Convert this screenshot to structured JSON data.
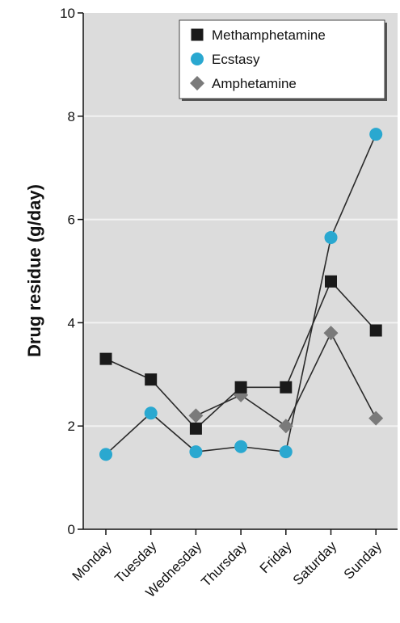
{
  "chart_data": {
    "type": "line",
    "title": "",
    "xlabel": "",
    "ylabel": "Drug residue (g/day)",
    "categories": [
      "Monday",
      "Tuesday",
      "Wednesday",
      "Thursday",
      "Friday",
      "Saturday",
      "Sunday"
    ],
    "ylim": [
      0,
      10
    ],
    "yticks": [
      "0",
      "2",
      "4",
      "6",
      "8",
      "10"
    ],
    "grid": true,
    "legend_position": "top-right",
    "series": [
      {
        "name": "Methamphetamine",
        "marker": "square",
        "color": "#1a1a1a",
        "values": [
          3.3,
          2.9,
          1.95,
          2.75,
          2.75,
          4.8,
          3.85
        ]
      },
      {
        "name": "Ecstasy",
        "marker": "circle",
        "color": "#2aa8d0",
        "values": [
          1.45,
          2.25,
          1.5,
          1.6,
          1.5,
          5.65,
          7.65
        ]
      },
      {
        "name": "Amphetamine",
        "marker": "diamond",
        "color": "#7a7a7a",
        "values": [
          null,
          null,
          2.2,
          2.6,
          2.0,
          3.8,
          2.15
        ]
      }
    ],
    "plot_background": "#dcdcdc",
    "line_color": "#2a2a2a"
  }
}
